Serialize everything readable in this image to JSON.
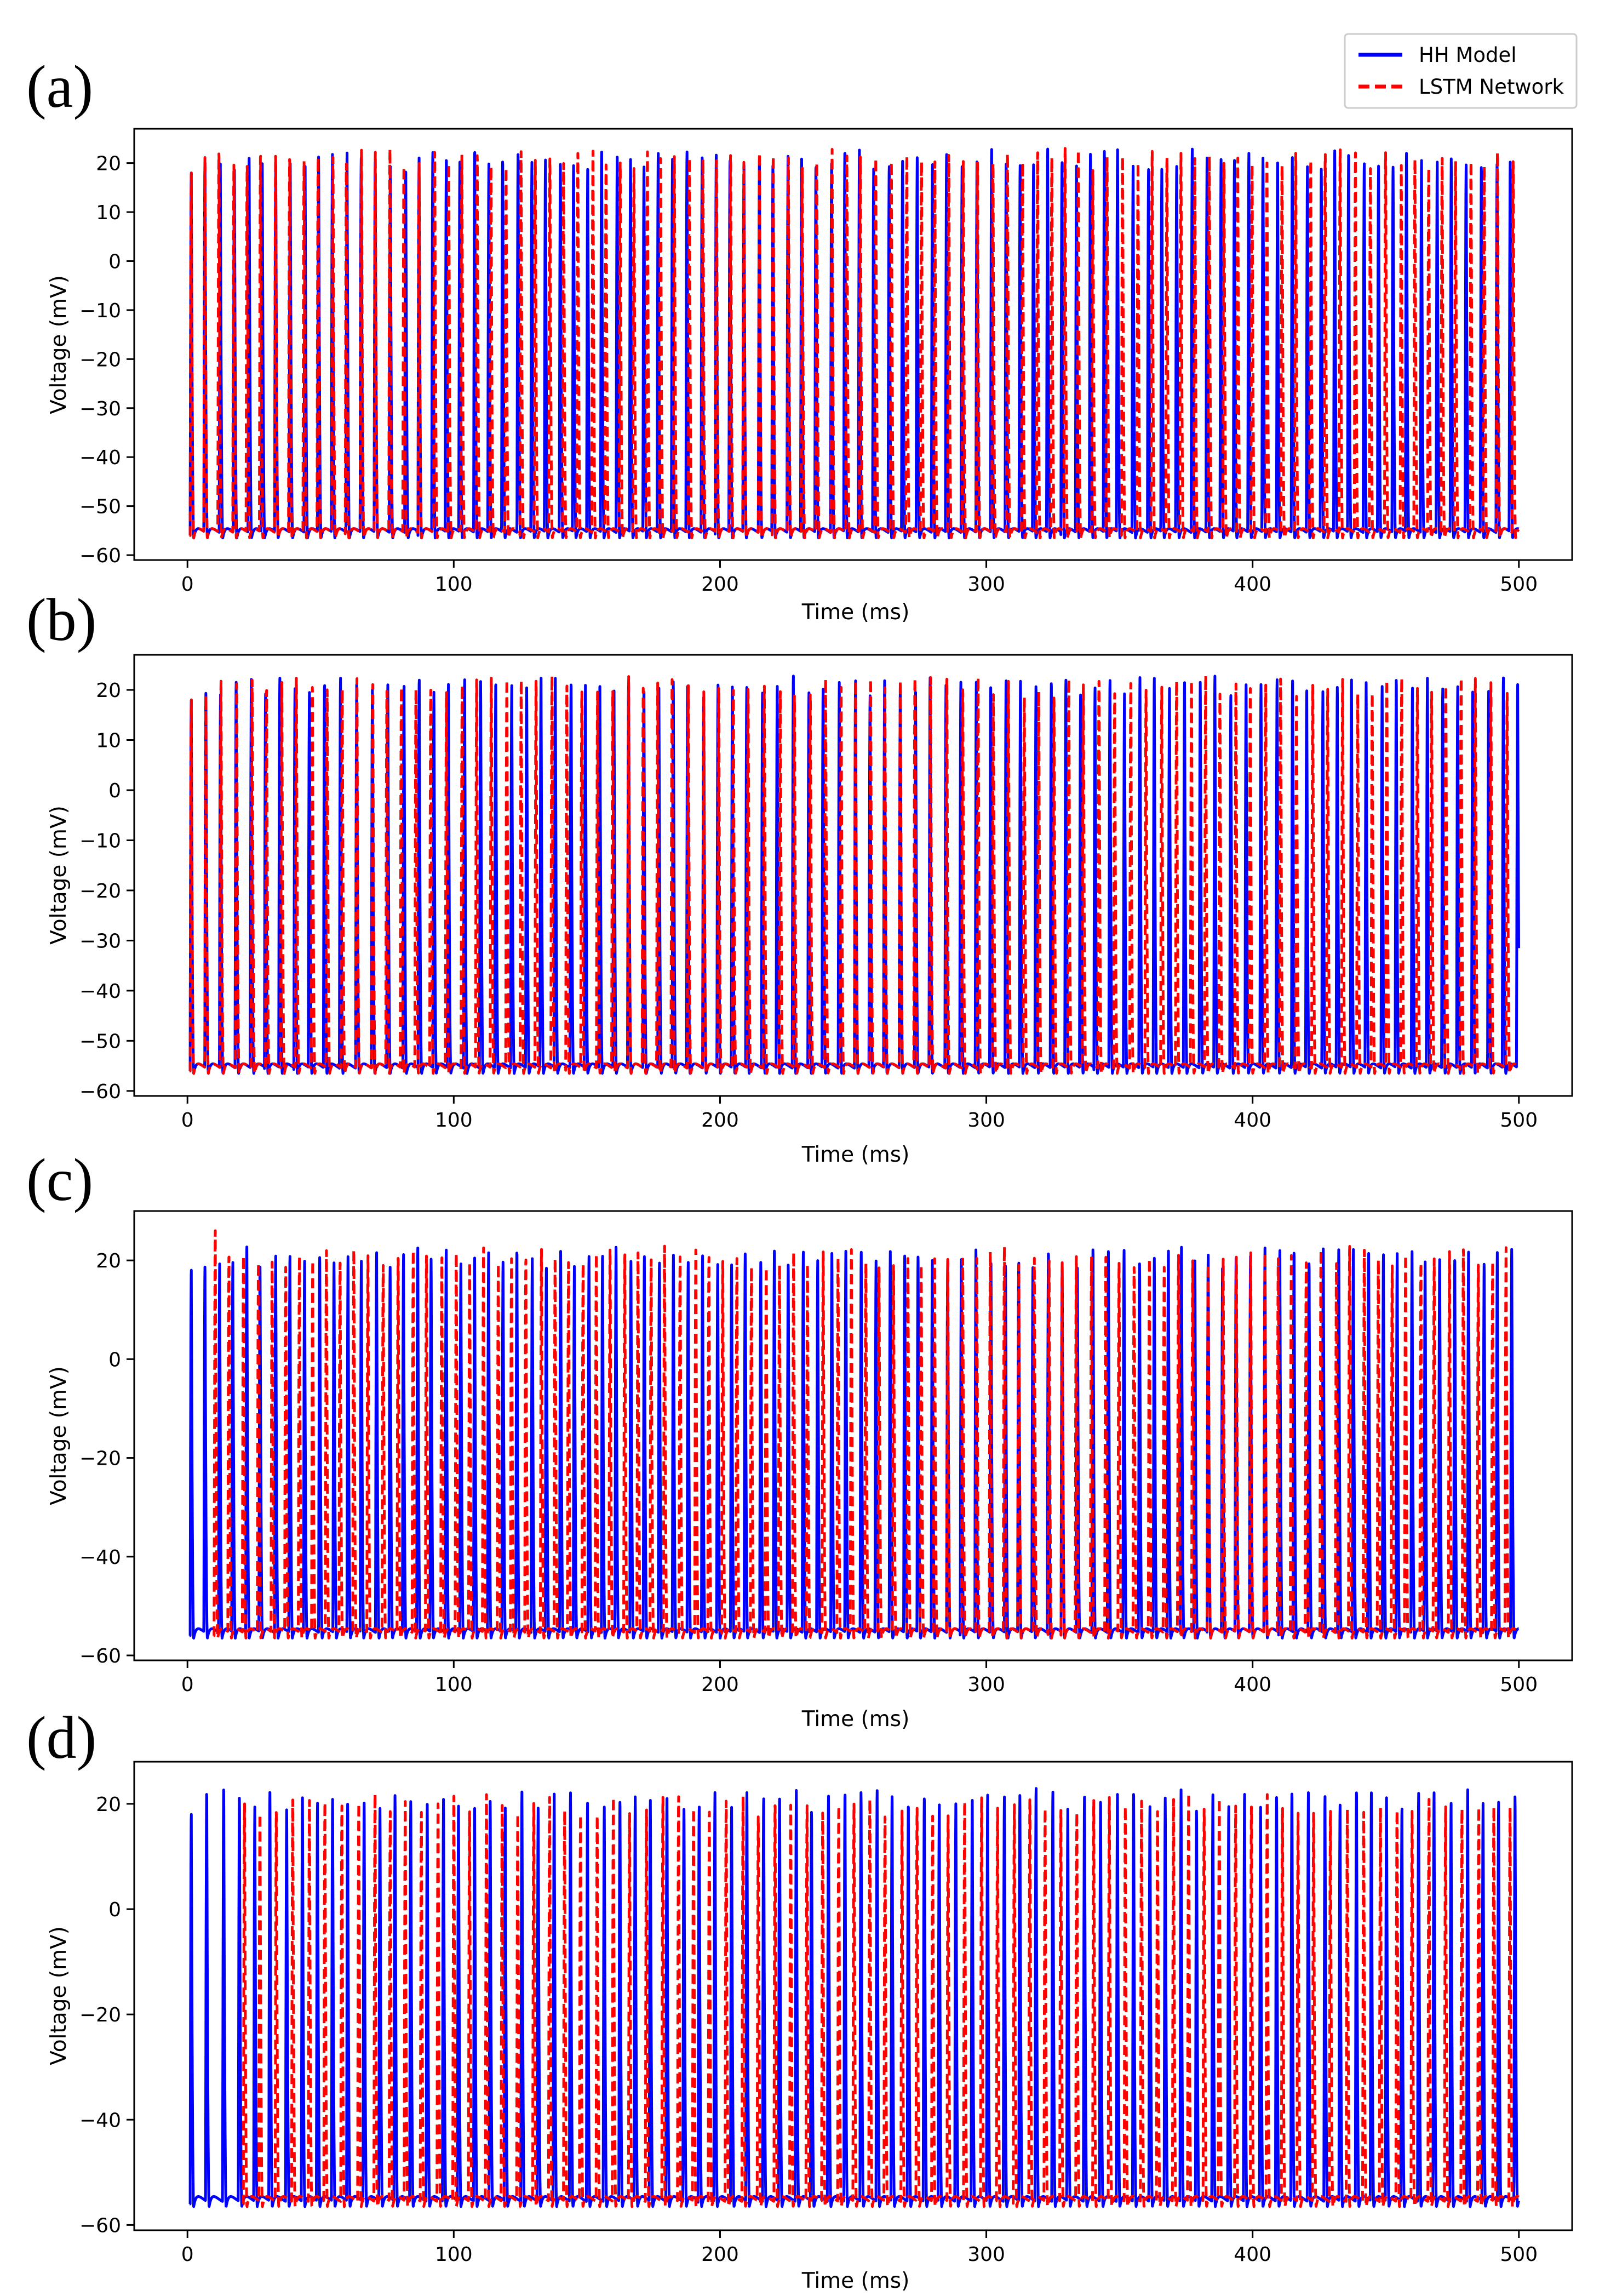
{
  "legend": {
    "entries": [
      {
        "label": "HH Model",
        "color": "#0000ff",
        "style": "solid"
      },
      {
        "label": "LSTM Network",
        "color": "#ff0000",
        "style": "dashed"
      }
    ],
    "location": "top-right"
  },
  "chart_data": [
    {
      "panel": "(a)",
      "type": "line",
      "xlabel": "Time (ms)",
      "ylabel": "Voltage (mV)",
      "xlim": [
        -20,
        520
      ],
      "ylim": [
        -61,
        27
      ],
      "xticks": [
        0,
        100,
        200,
        300,
        400,
        500
      ],
      "yticks": [
        20,
        10,
        0,
        -10,
        -20,
        -30,
        -40,
        -50,
        -60
      ],
      "series": [
        {
          "name": "HH Model",
          "color": "#0000ff",
          "style": "solid",
          "rest_mV": -56,
          "peak_mV": 23,
          "first_spike_ms": 1,
          "first_peak_mV": 18,
          "interval_ms": [
            4.9,
            5.9
          ],
          "end_ms": 500,
          "seed": 3
        },
        {
          "name": "LSTM Network",
          "color": "#ff0000",
          "style": "dashed",
          "rest_mV": -56,
          "peak_mV": 23,
          "first_spike_ms": 1,
          "first_peak_mV": 18,
          "interval_ms": [
            4.9,
            5.9
          ],
          "end_ms": 500,
          "seed": 11
        }
      ]
    },
    {
      "panel": "(b)",
      "type": "line",
      "xlabel": "Time (ms)",
      "ylabel": "Voltage (mV)",
      "xlim": [
        -20,
        520
      ],
      "ylim": [
        -61,
        27
      ],
      "xticks": [
        0,
        100,
        200,
        300,
        400,
        500
      ],
      "yticks": [
        20,
        10,
        0,
        -10,
        -20,
        -30,
        -40,
        -50,
        -60
      ],
      "series": [
        {
          "name": "HH Model",
          "color": "#0000ff",
          "style": "solid",
          "rest_mV": -56,
          "peak_mV": 23,
          "first_spike_ms": 1,
          "first_peak_mV": 18,
          "interval_ms": [
            5.3,
            6.1
          ],
          "end_ms": 500,
          "seed": 5
        },
        {
          "name": "LSTM Network",
          "color": "#ff0000",
          "style": "dashed",
          "rest_mV": -56,
          "peak_mV": 23,
          "first_spike_ms": 1,
          "first_peak_mV": 18,
          "interval_ms": [
            5.3,
            6.1
          ],
          "end_ms": 500,
          "seed": 17
        }
      ]
    },
    {
      "panel": "(c)",
      "type": "line",
      "xlabel": "Time (ms)",
      "ylabel": "Voltage (mV)",
      "xlim": [
        -20,
        520
      ],
      "ylim": [
        -61,
        30
      ],
      "xticks": [
        0,
        100,
        200,
        300,
        400,
        500
      ],
      "yticks": [
        20,
        0,
        -20,
        -40,
        -60
      ],
      "series": [
        {
          "name": "HH Model",
          "color": "#0000ff",
          "style": "solid",
          "rest_mV": -56,
          "peak_mV": 23,
          "first_spike_ms": 1,
          "first_peak_mV": 18,
          "interval_ms": [
            4.9,
            5.9
          ],
          "end_ms": 500,
          "seed": 7
        },
        {
          "name": "LSTM Network",
          "color": "#ff0000",
          "style": "dashed",
          "rest_mV": -56,
          "peak_mV": 23,
          "first_spike_ms": 10,
          "first_peak_mV": 26,
          "interval_ms": [
            4.9,
            5.9
          ],
          "end_ms": 500,
          "seed": 23
        }
      ]
    },
    {
      "panel": "(d)",
      "type": "line",
      "xlabel": "Time (ms)",
      "ylabel": "Voltage (mV)",
      "xlim": [
        -20,
        520
      ],
      "ylim": [
        -61,
        28
      ],
      "xticks": [
        0,
        100,
        200,
        300,
        400,
        500
      ],
      "yticks": [
        20,
        0,
        -20,
        -40,
        -60
      ],
      "series": [
        {
          "name": "HH Model",
          "color": "#0000ff",
          "style": "solid",
          "rest_mV": -56,
          "peak_mV": 23,
          "first_spike_ms": 1,
          "first_peak_mV": 18,
          "interval_ms": [
            5.6,
            6.4
          ],
          "end_ms": 500,
          "seed": 9
        },
        {
          "name": "LSTM Network",
          "color": "#ff0000",
          "style": "dashed",
          "rest_mV": -56,
          "peak_mV": 22,
          "first_spike_ms": 21,
          "first_peak_mV": 20,
          "interval_ms": [
            5.6,
            6.4
          ],
          "end_ms": 500,
          "seed": 29
        }
      ]
    }
  ]
}
